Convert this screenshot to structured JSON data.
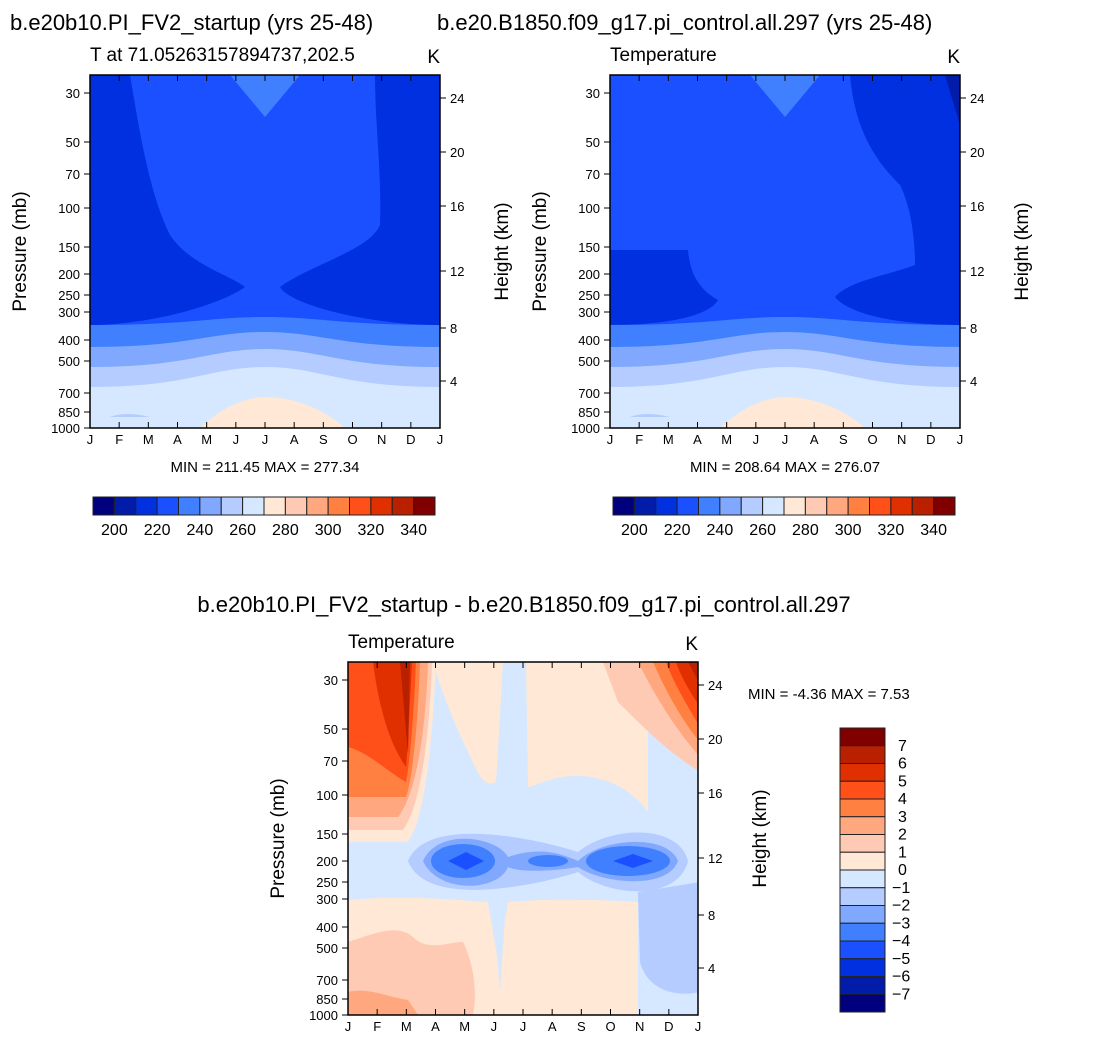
{
  "colors": {
    "palette": [
      "#00007f",
      "#001ca8",
      "#0030e0",
      "#1a50ff",
      "#4080ff",
      "#80a8ff",
      "#b4ccff",
      "#d6e8ff",
      "#ffe8d6",
      "#ffcab4",
      "#ffa880",
      "#ff8040",
      "#ff501a",
      "#e03000",
      "#b82000",
      "#800000"
    ]
  },
  "chart_data": [
    {
      "type": "heatmap",
      "subtype": "filled-contour",
      "title": "b.e20b10.PI_FV2_startup (yrs 25-48)",
      "left_string": "T at 71.05263157894737,202.5",
      "right_string": "K",
      "ylabel": "Pressure (mb)",
      "ylabel_right": "Height (km)",
      "x_ticks": [
        "J",
        "F",
        "M",
        "A",
        "M",
        "J",
        "J",
        "A",
        "S",
        "O",
        "N",
        "D",
        "J"
      ],
      "y_ticks": [
        "30",
        "50",
        "70",
        "100",
        "150",
        "200",
        "250",
        "300",
        "400",
        "500",
        "700",
        "850",
        "1000"
      ],
      "y_right_ticks": [
        "24",
        "20",
        "16",
        "12",
        "8",
        "4"
      ],
      "min_max_text": "MIN = 211.45 MAX = 277.34",
      "min": 211.45,
      "max": 277.34,
      "colorbar_labels": [
        "200",
        "220",
        "240",
        "260",
        "280",
        "300",
        "320",
        "340"
      ]
    },
    {
      "type": "heatmap",
      "subtype": "filled-contour",
      "title": "b.e20.B1850.f09_g17.pi_control.all.297 (yrs 25-48)",
      "left_string": "Temperature",
      "right_string": "K",
      "ylabel": "Pressure (mb)",
      "ylabel_right": "Height (km)",
      "x_ticks": [
        "J",
        "F",
        "M",
        "A",
        "M",
        "J",
        "J",
        "A",
        "S",
        "O",
        "N",
        "D",
        "J"
      ],
      "y_ticks": [
        "30",
        "50",
        "70",
        "100",
        "150",
        "200",
        "250",
        "300",
        "400",
        "500",
        "700",
        "850",
        "1000"
      ],
      "y_right_ticks": [
        "24",
        "20",
        "16",
        "12",
        "8",
        "4"
      ],
      "min_max_text": "MIN = 208.64 MAX = 276.07",
      "min": 208.64,
      "max": 276.07,
      "colorbar_labels": [
        "200",
        "220",
        "240",
        "260",
        "280",
        "300",
        "320",
        "340"
      ]
    },
    {
      "type": "heatmap",
      "subtype": "filled-contour",
      "title": "b.e20b10.PI_FV2_startup - b.e20.B1850.f09_g17.pi_control.all.297",
      "left_string": "Temperature",
      "right_string": "K",
      "ylabel": "Pressure (mb)",
      "ylabel_right": "Height (km)",
      "x_ticks": [
        "J",
        "F",
        "M",
        "A",
        "M",
        "J",
        "J",
        "A",
        "S",
        "O",
        "N",
        "D",
        "J"
      ],
      "y_ticks": [
        "30",
        "50",
        "70",
        "100",
        "150",
        "200",
        "250",
        "300",
        "400",
        "500",
        "700",
        "850",
        "1000"
      ],
      "y_right_ticks": [
        "24",
        "20",
        "16",
        "12",
        "8",
        "4"
      ],
      "min_max_text": "MIN =   -4.36 MAX =    7.53",
      "min": -4.36,
      "max": 7.53,
      "colorbar_labels": [
        "7",
        "6",
        "5",
        "4",
        "3",
        "2",
        "1",
        "0",
        "−1",
        "−2",
        "−3",
        "−4",
        "−5",
        "−6",
        "−7"
      ]
    }
  ]
}
